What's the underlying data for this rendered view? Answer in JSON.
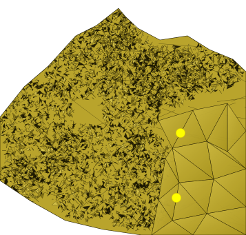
{
  "viewport": {
    "background": "#ffffff"
  },
  "terrain": {
    "surface_color": "#b9a42c",
    "surface_light": "#d6c44a",
    "surface_dark": "#7d6d16",
    "edge_color": "#1b1700",
    "shadow_color": "#141100"
  },
  "markers": {
    "color": "#ffff00",
    "items": [
      {
        "id": "marker-1",
        "label": ""
      },
      {
        "id": "marker-2",
        "label": ""
      }
    ]
  }
}
